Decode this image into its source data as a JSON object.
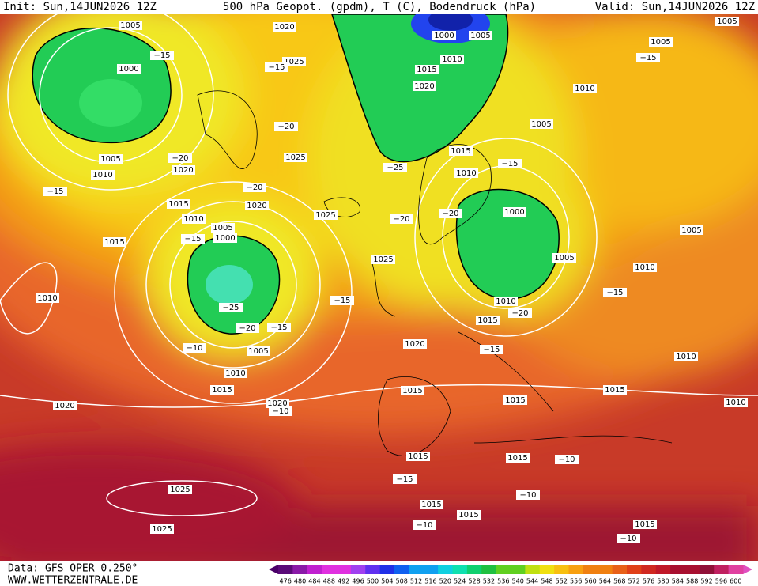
{
  "header": {
    "init": "Init: Sun,14JUN2026 12Z",
    "title": "500 hPa Geopot. (gpdm), T (C), Bodendruck (hPa)",
    "valid": "Valid: Sun,14JUN2026 12Z"
  },
  "footer": {
    "source": "Data: GFS OPER 0.250°",
    "site": "WWW.WETTERZENTRALE.DE"
  },
  "colorbar": {
    "values": [
      476,
      480,
      484,
      488,
      492,
      496,
      500,
      504,
      508,
      512,
      516,
      520,
      524,
      528,
      532,
      536,
      540,
      544,
      548,
      552,
      556,
      560,
      564,
      568,
      572,
      576,
      580,
      584,
      588,
      592,
      596,
      600
    ]
  },
  "map_labels": {
    "pressure": [
      "1005",
      "1020",
      "1000",
      "1005",
      "1005",
      "1005",
      "1010",
      "1025",
      "1000",
      "1015",
      "1020",
      "1010",
      "1005",
      "1015",
      "1005",
      "1025",
      "1020",
      "1010",
      "1010",
      "1000",
      "1020",
      "1025",
      "1015",
      "1010",
      "1005",
      "1000",
      "1015",
      "1005",
      "1025",
      "1005",
      "1010",
      "1010",
      "1010",
      "1015",
      "1020",
      "1005",
      "1010",
      "1010",
      "1015",
      "1015",
      "1015",
      "1015",
      "1020",
      "1020",
      "1010",
      "1015",
      "1015",
      "1025",
      "1015",
      "1015",
      "1025",
      "1015"
    ],
    "temperature": [
      "−15",
      "−15",
      "−15",
      "−20",
      "−20",
      "−15",
      "−25",
      "−20",
      "−15",
      "−20",
      "−20",
      "−15",
      "−15",
      "−15",
      "−25",
      "−20",
      "−20",
      "−15",
      "−10",
      "−15",
      "−10",
      "−10",
      "−15",
      "−10",
      "−10",
      "−10"
    ]
  }
}
